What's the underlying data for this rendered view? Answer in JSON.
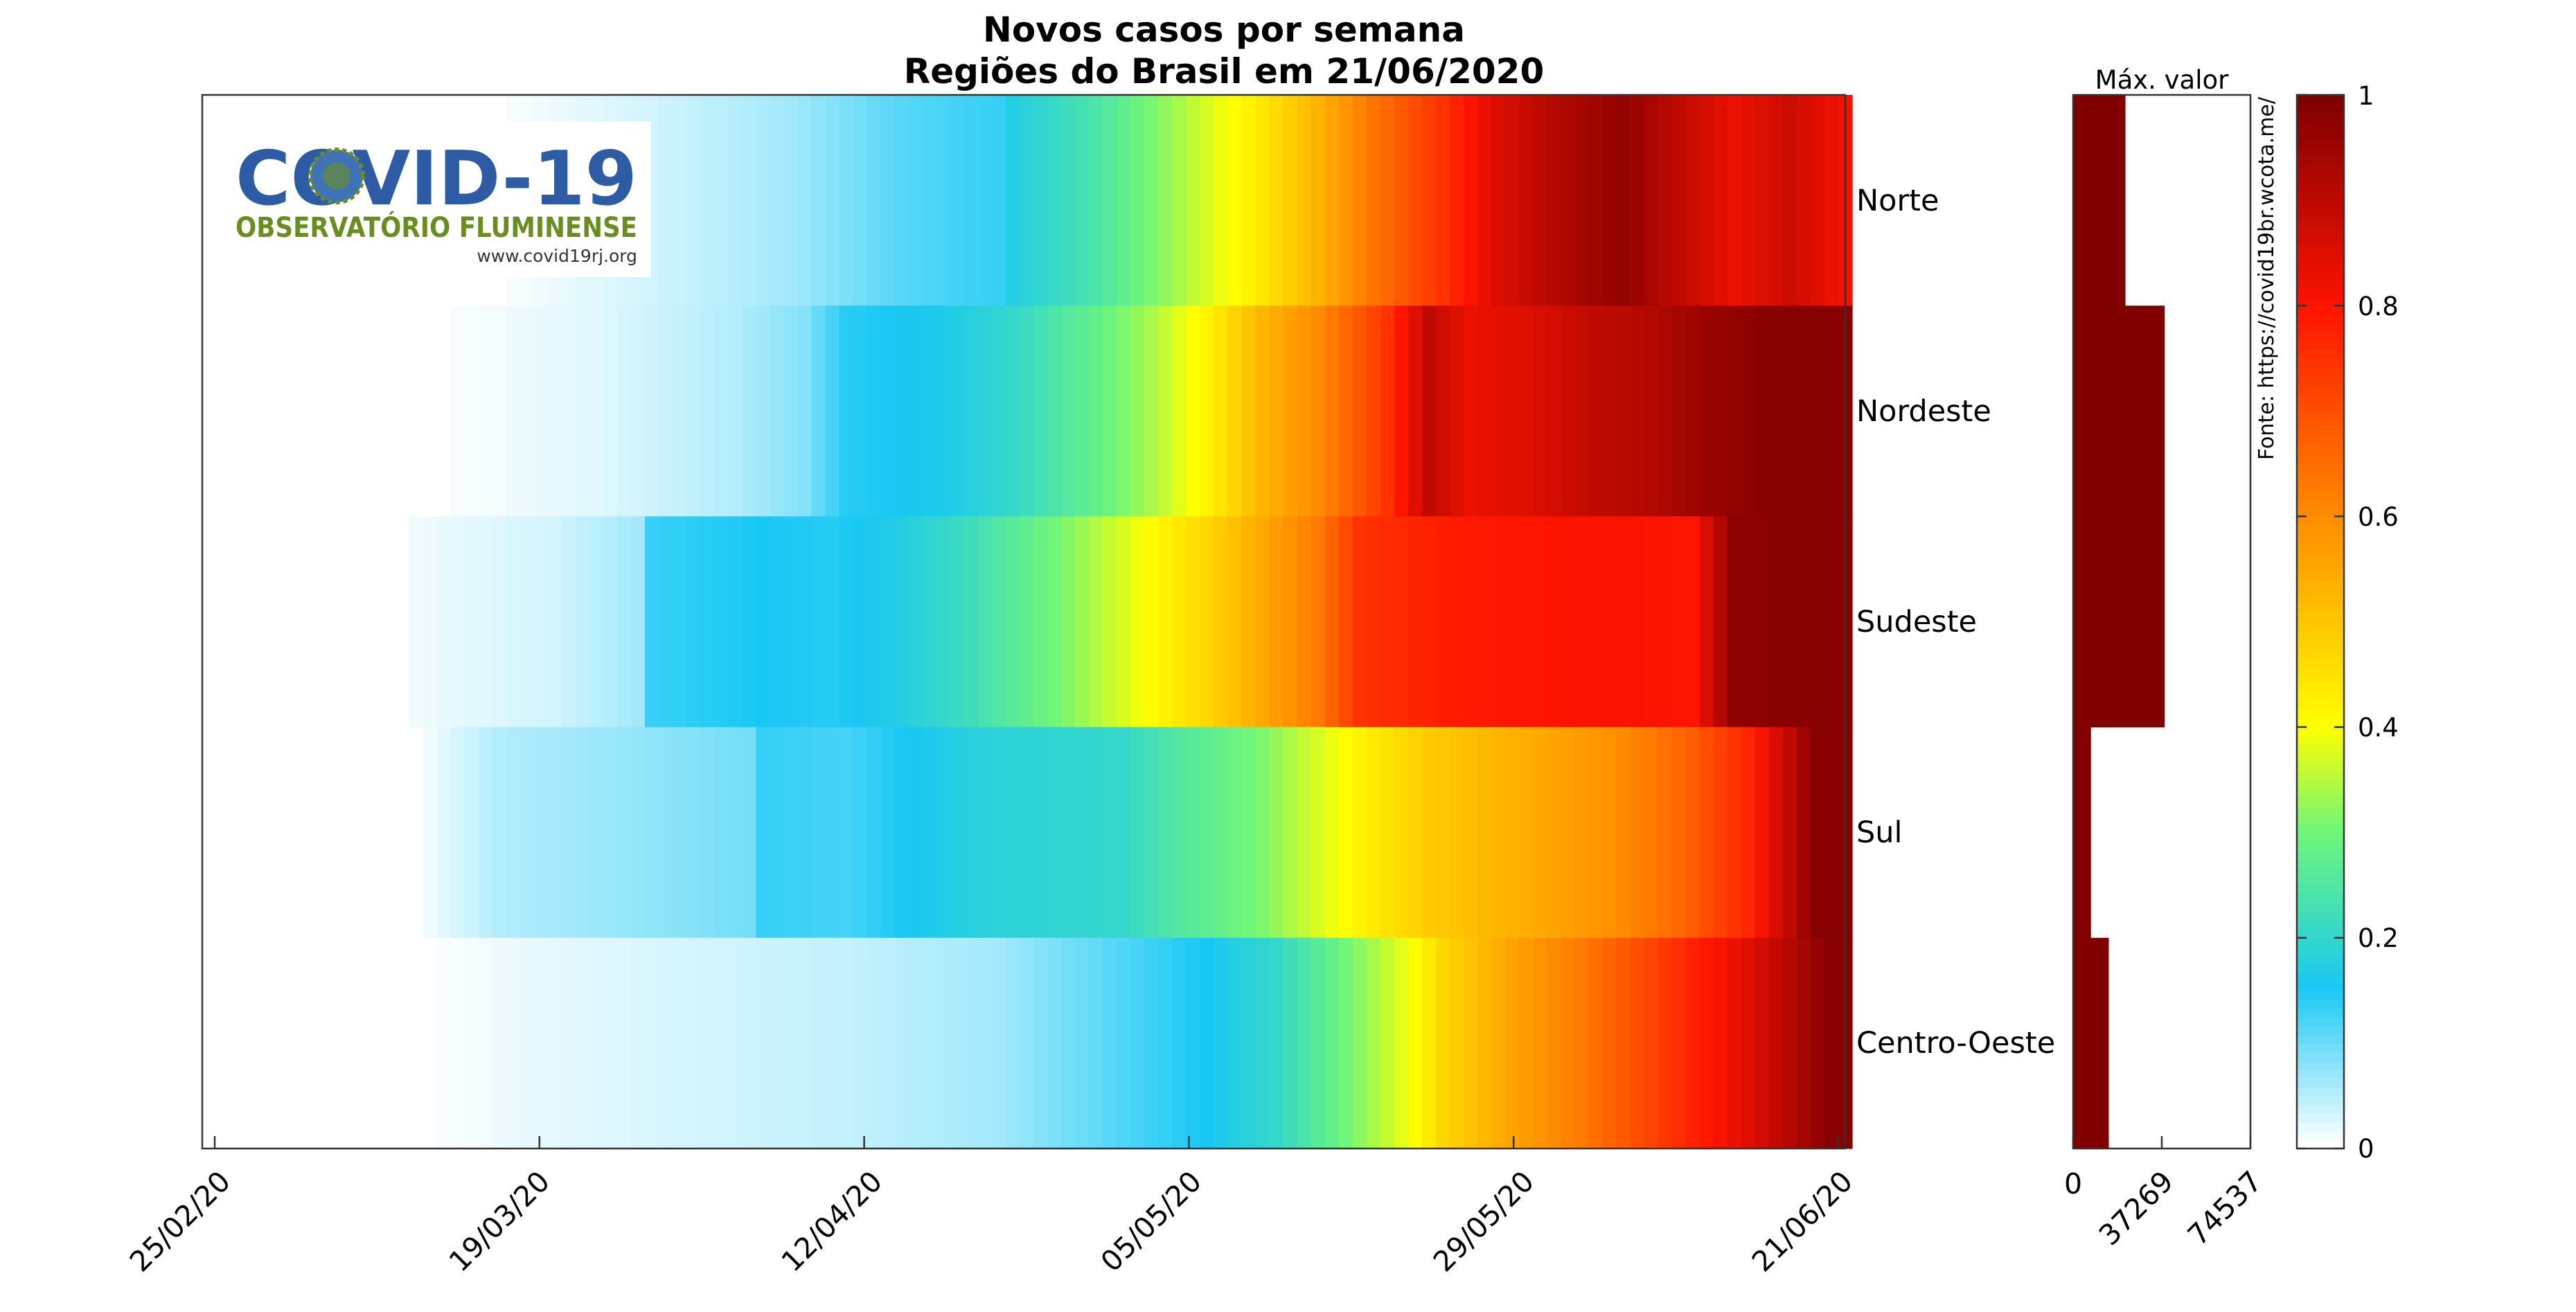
{
  "chart_data": {
    "type": "heatmap",
    "title": "Novos casos por semana",
    "subtitle": "Regiões do Brasil em 21/06/2020",
    "rows": [
      "Norte",
      "Nordeste",
      "Sudeste",
      "Sul",
      "Centro-Oeste"
    ],
    "x_range": [
      "2020-02-25",
      "2020-06-21"
    ],
    "x_ticks": [
      "25/02/20",
      "19/03/20",
      "12/04/20",
      "05/05/20",
      "29/05/20",
      "21/06/20"
    ],
    "color_scale": {
      "min": 0,
      "max": 1,
      "colormap": "white-cyan-green-yellow-red-darkred"
    },
    "colorbar_ticks": [
      "0",
      "0.2",
      "0.4",
      "0.6",
      "0.8",
      "1"
    ],
    "heat_series": [
      {
        "name": "Norte",
        "start": "2020-03-17",
        "profile": [
          [
            0,
            0.005
          ],
          [
            10,
            0.03
          ],
          [
            20,
            0.06
          ],
          [
            28,
            0.11
          ],
          [
            35,
            0.13
          ],
          [
            36,
            0.17
          ],
          [
            42,
            0.24
          ],
          [
            48,
            0.34
          ],
          [
            53,
            0.42
          ],
          [
            58,
            0.53
          ],
          [
            62,
            0.64
          ],
          [
            67,
            0.75
          ],
          [
            71,
            0.86
          ],
          [
            76,
            0.93
          ],
          [
            80,
            0.97
          ],
          [
            84,
            0.9
          ],
          [
            88,
            0.83
          ],
          [
            92,
            0.88
          ],
          [
            96,
            0.82
          ],
          [
            97,
            0.95
          ]
        ]
      },
      {
        "name": "Nordeste",
        "start": "2020-03-13",
        "profile": [
          [
            0,
            0.005
          ],
          [
            10,
            0.02
          ],
          [
            20,
            0.05
          ],
          [
            25,
            0.08
          ],
          [
            28,
            0.14
          ],
          [
            35,
            0.16
          ],
          [
            40,
            0.2
          ],
          [
            46,
            0.28
          ],
          [
            50,
            0.34
          ],
          [
            54,
            0.42
          ],
          [
            58,
            0.53
          ],
          [
            62,
            0.6
          ],
          [
            64,
            0.66
          ],
          [
            67,
            0.75
          ],
          [
            70,
            0.9
          ],
          [
            73,
            0.83
          ],
          [
            78,
            0.86
          ],
          [
            82,
            0.9
          ],
          [
            86,
            0.92
          ],
          [
            90,
            0.96
          ],
          [
            95,
            0.99
          ],
          [
            100,
            0.99
          ]
        ]
      },
      {
        "name": "Sudeste",
        "start": "2020-03-10",
        "profile": [
          [
            0,
            0.01
          ],
          [
            10,
            0.03
          ],
          [
            16,
            0.06
          ],
          [
            17,
            0.13
          ],
          [
            25,
            0.15
          ],
          [
            30,
            0.14
          ],
          [
            35,
            0.17
          ],
          [
            40,
            0.22
          ],
          [
            46,
            0.3
          ],
          [
            52,
            0.39
          ],
          [
            57,
            0.47
          ],
          [
            62,
            0.57
          ],
          [
            65,
            0.63
          ],
          [
            68,
            0.75
          ],
          [
            75,
            0.79
          ],
          [
            85,
            0.81
          ],
          [
            92,
            0.8
          ],
          [
            95,
            0.98
          ],
          [
            103,
            0.99
          ]
        ]
      },
      {
        "name": "Sul",
        "start": "2020-03-11",
        "profile": [
          [
            0,
            0.01
          ],
          [
            5,
            0.05
          ],
          [
            15,
            0.07
          ],
          [
            23,
            0.09
          ],
          [
            24,
            0.13
          ],
          [
            30,
            0.12
          ],
          [
            36,
            0.16
          ],
          [
            40,
            0.18
          ],
          [
            50,
            0.2
          ],
          [
            53,
            0.24
          ],
          [
            60,
            0.31
          ],
          [
            67,
            0.42
          ],
          [
            72,
            0.49
          ],
          [
            80,
            0.55
          ],
          [
            86,
            0.6
          ],
          [
            90,
            0.66
          ],
          [
            95,
            0.77
          ],
          [
            100,
            0.99
          ]
        ]
      },
      {
        "name": "Centro-Oeste",
        "start": "2020-03-12",
        "profile": [
          [
            0,
            0.005
          ],
          [
            10,
            0.02
          ],
          [
            20,
            0.03
          ],
          [
            30,
            0.04
          ],
          [
            40,
            0.06
          ],
          [
            45,
            0.09
          ],
          [
            50,
            0.12
          ],
          [
            55,
            0.15
          ],
          [
            60,
            0.2
          ],
          [
            65,
            0.3
          ],
          [
            70,
            0.4
          ],
          [
            72,
            0.47
          ],
          [
            77,
            0.56
          ],
          [
            82,
            0.63
          ],
          [
            88,
            0.74
          ],
          [
            94,
            0.85
          ],
          [
            97,
            0.92
          ],
          [
            100,
            0.99
          ]
        ]
      }
    ],
    "max_value": {
      "label": "Máx. valor",
      "axis_ticks": [
        "0",
        "37269",
        "74537"
      ],
      "xlim": [
        0,
        74537
      ],
      "values": [
        {
          "name": "Norte",
          "value": 22000
        },
        {
          "name": "Nordeste",
          "value": 38500
        },
        {
          "name": "Sudeste",
          "value": 38500
        },
        {
          "name": "Sul",
          "value": 7500
        },
        {
          "name": "Centro-Oeste",
          "value": 15000
        }
      ]
    }
  },
  "source_note": "Fonte: https://covid19br.wcota.me/",
  "logo": {
    "title": "COVID-19",
    "subtitle": "OBSERVATÓRIO FLUMINENSE",
    "url": "www.covid19rj.org"
  },
  "colors": {
    "frame": "#333333",
    "max_bar": "#800000",
    "logo_blue": "#2d5ba4",
    "logo_green": "#6a8d1f"
  }
}
